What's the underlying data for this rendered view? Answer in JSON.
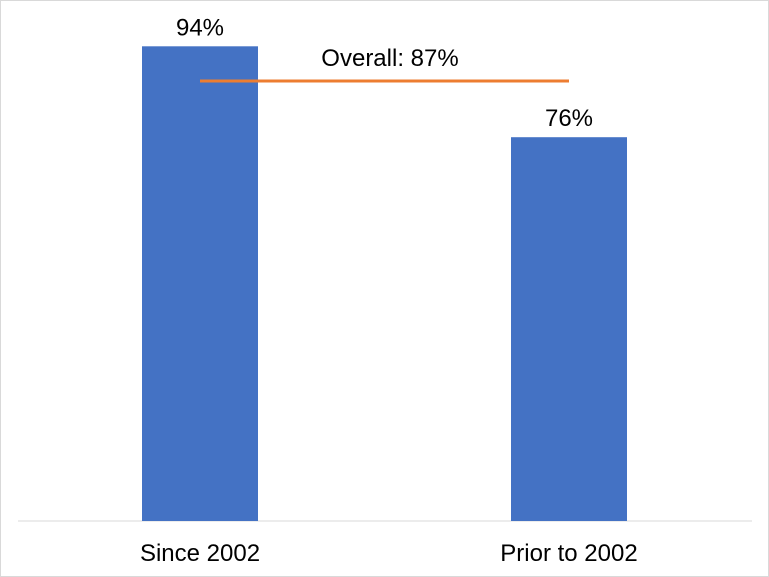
{
  "chart_data": {
    "type": "bar",
    "categories": [
      "Since 2002",
      "Prior to 2002"
    ],
    "values": [
      94,
      76
    ],
    "value_labels": [
      "94%",
      "76%"
    ],
    "ylim": [
      0,
      100
    ],
    "grid": false,
    "legend": "none",
    "reference_line": {
      "label": "Overall: 87%",
      "value": 87
    },
    "colors": {
      "bar": "#4472c4",
      "reference_line": "#ed7d31",
      "axis": "#d9d9d9"
    }
  }
}
